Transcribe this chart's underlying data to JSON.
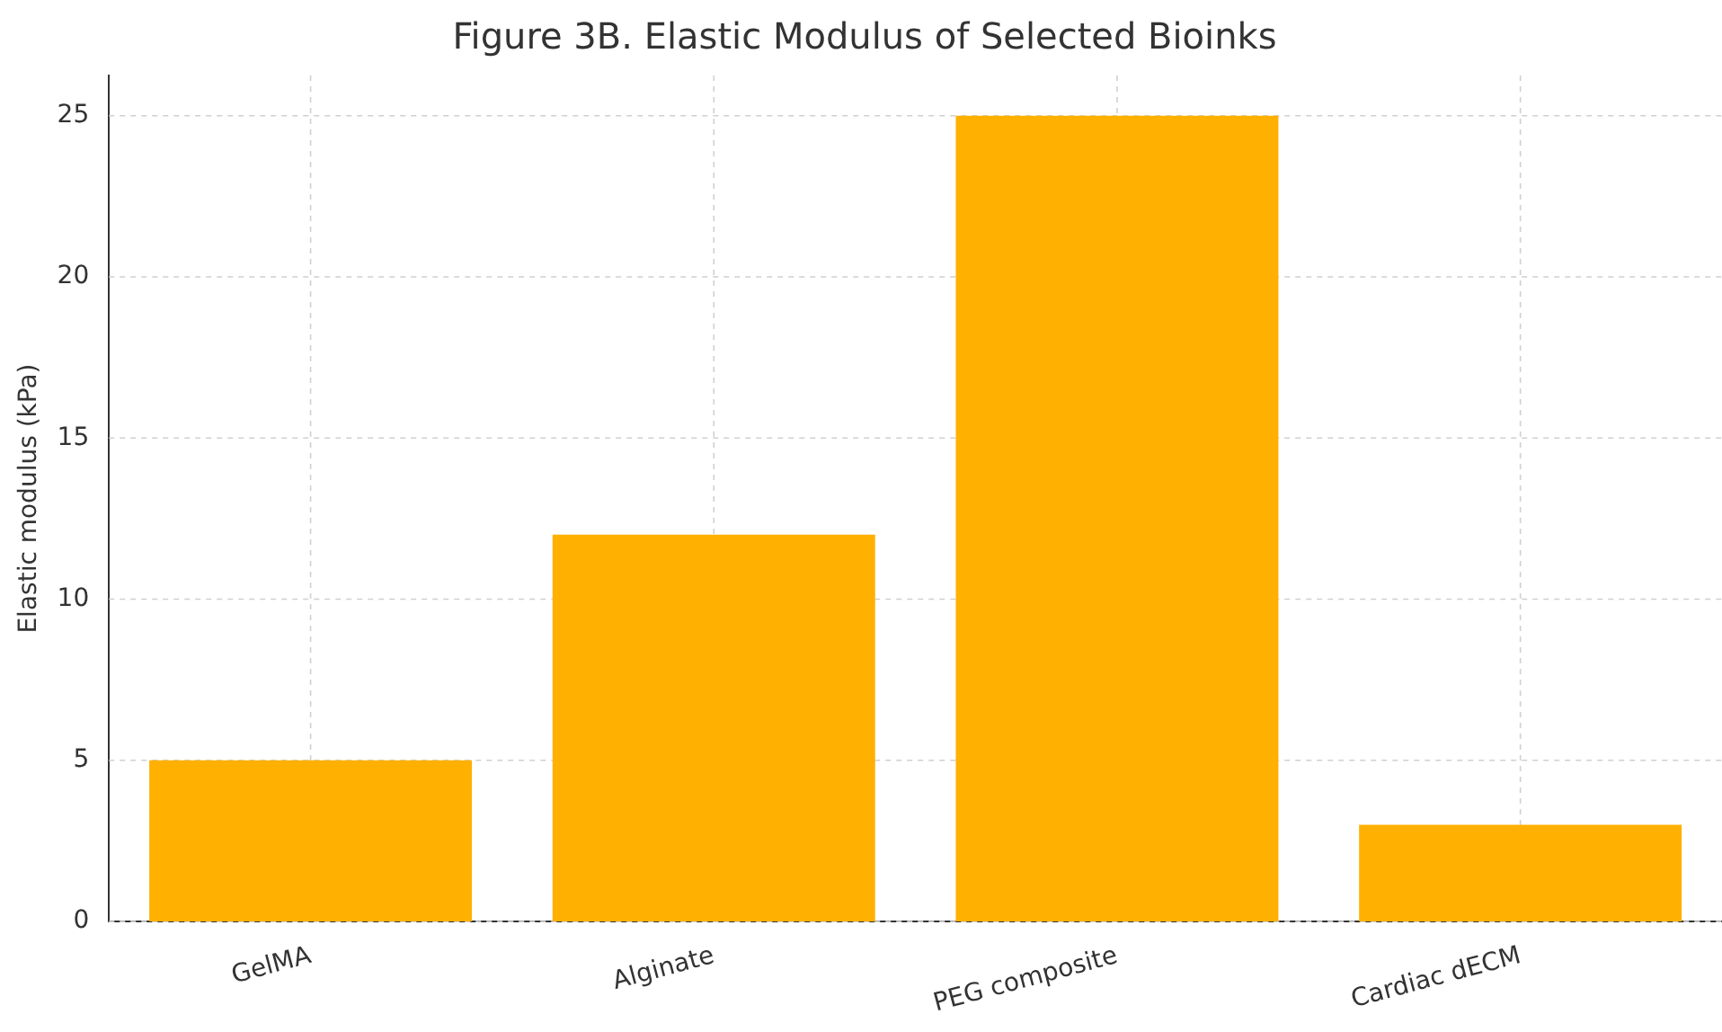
{
  "chart_data": {
    "type": "bar",
    "title": "Figure 3B. Elastic Modulus of Selected Bioinks",
    "ylabel": "Elastic modulus (kPa)",
    "categories": [
      "GelMA",
      "Alginate",
      "PEG composite",
      "Cardiac dECM"
    ],
    "values": [
      5,
      12,
      25,
      3
    ],
    "color": "#ffb000",
    "ylim": [
      0,
      26.25
    ],
    "yticks": [
      0,
      5,
      10,
      15,
      20,
      25
    ],
    "grid": true,
    "legend": false
  }
}
